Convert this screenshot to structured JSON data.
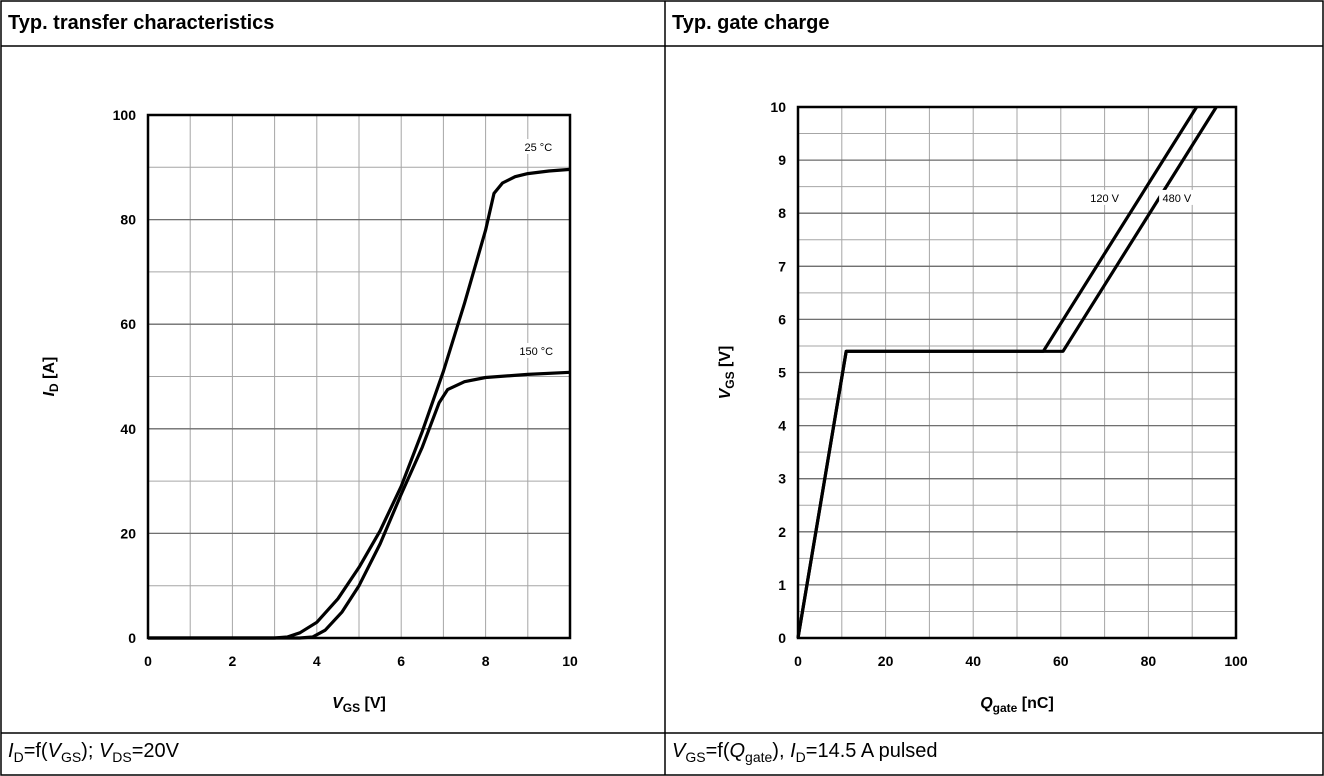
{
  "panels": [
    {
      "header": "Typ. transfer characteristics",
      "caption": {
        "i_sym": "I",
        "i_sub": "D",
        "eq": "=f(",
        "v_sym": "V",
        "v_sub": "GS",
        "close": ");",
        "v2_sym": "V",
        "v2_sub": "DS",
        "v2_val": "=20V"
      }
    },
    {
      "header": "Typ. gate charge",
      "caption": {
        "v_sym": "V",
        "v_sub": "GS",
        "eq": "=f(",
        "q_sym": "Q",
        "q_sub": "gate",
        "close": "),",
        "i_sym": "I",
        "i_sub": "D",
        "i_val": "=14.5 A pulsed"
      }
    }
  ],
  "chart_data": [
    {
      "type": "line",
      "xlabel": {
        "sym": "V",
        "sub": "GS",
        "unit": " [V]"
      },
      "ylabel": {
        "sym": "I",
        "sub": "D",
        "unit": " [A]"
      },
      "xlim": [
        0,
        10
      ],
      "ylim": [
        0,
        100
      ],
      "x_ticks": [
        "0",
        "2",
        "4",
        "6",
        "8",
        "10"
      ],
      "y_ticks": [
        "0",
        "20",
        "40",
        "60",
        "80",
        "100"
      ],
      "grid": true,
      "series": [
        {
          "name": "25 °C",
          "points": [
            [
              0,
              0
            ],
            [
              3,
              0
            ],
            [
              3.3,
              0.2
            ],
            [
              3.6,
              1
            ],
            [
              4,
              3
            ],
            [
              4.5,
              7.5
            ],
            [
              5,
              13.5
            ],
            [
              5.5,
              20.5
            ],
            [
              6,
              29
            ],
            [
              6.5,
              39.5
            ],
            [
              7,
              51
            ],
            [
              7.5,
              64
            ],
            [
              8,
              78
            ],
            [
              8.2,
              85
            ],
            [
              8.4,
              87
            ],
            [
              8.7,
              88.2
            ],
            [
              9,
              88.8
            ],
            [
              9.5,
              89.3
            ],
            [
              10,
              89.6
            ]
          ]
        },
        {
          "name": "150 °C",
          "points": [
            [
              0,
              0
            ],
            [
              3.6,
              0
            ],
            [
              3.9,
              0.2
            ],
            [
              4.2,
              1.5
            ],
            [
              4.6,
              5
            ],
            [
              5,
              10
            ],
            [
              5.5,
              18
            ],
            [
              6,
              27.5
            ],
            [
              6.5,
              36.5
            ],
            [
              6.9,
              45
            ],
            [
              7.1,
              47.5
            ],
            [
              7.5,
              49
            ],
            [
              8,
              49.8
            ],
            [
              9,
              50.4
            ],
            [
              10,
              50.8
            ]
          ]
        }
      ]
    },
    {
      "type": "line",
      "xlabel": {
        "sym": "Q",
        "sub": "gate",
        "unit": " [nC]"
      },
      "ylabel": {
        "sym": "V",
        "sub": "GS",
        "unit": " [V]"
      },
      "xlim": [
        0,
        100
      ],
      "ylim": [
        0,
        10
      ],
      "x_ticks": [
        "0",
        "20",
        "40",
        "60",
        "80",
        "100"
      ],
      "y_ticks": [
        "0",
        "1",
        "2",
        "3",
        "4",
        "5",
        "6",
        "7",
        "8",
        "9",
        "10"
      ],
      "grid": true,
      "series": [
        {
          "name": "120 V",
          "points": [
            [
              0,
              0
            ],
            [
              11,
              5.4
            ],
            [
              56,
              5.4
            ],
            [
              91,
              10
            ]
          ]
        },
        {
          "name": "480 V",
          "points": [
            [
              0,
              0
            ],
            [
              11,
              5.4
            ],
            [
              60.5,
              5.4
            ],
            [
              95.5,
              10
            ]
          ]
        }
      ]
    }
  ]
}
